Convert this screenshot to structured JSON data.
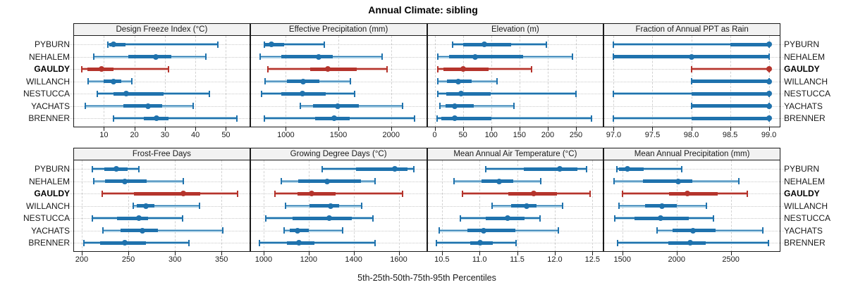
{
  "chart_data": {
    "type": "interval",
    "title": "Annual Climate: sibling",
    "xlabel": "5th-25th-50th-75th-95th Percentiles",
    "percentiles_shown": [
      5,
      25,
      50,
      75,
      95
    ],
    "legend_position": "none",
    "grid": "dashed vertical gridlines + dotted row guides",
    "sites": [
      "PYBURN",
      "NEHALEM",
      "GAULDY",
      "WILLANCH",
      "NESTUCCA",
      "YACHATS",
      "BRENNER"
    ],
    "highlight_site": "GAULDY",
    "colors": {
      "series_dark": "#1f72ad",
      "series_light": "#a9cfe4",
      "highlight_dark": "#b5342c",
      "highlight_light": "#e7b8b3",
      "header_bg": "#f2f2f2",
      "border": "#1a1a1a",
      "gridline": "#d2d2d2"
    },
    "panels": [
      {
        "label": "Design Freeze Index (°C)",
        "axis_min": 0.2,
        "axis_max": 57.7,
        "ticks": [
          10,
          20,
          30,
          40,
          50
        ],
        "tick_labels": [
          "10",
          "20",
          "30",
          "40",
          "50"
        ],
        "series": [
          [
            11.3,
            11.7,
            13.1,
            17.0,
            47.4
          ],
          [
            6.7,
            18.0,
            27.1,
            32.2,
            43.5
          ],
          [
            2.7,
            4.6,
            9.1,
            13.2,
            31.2
          ],
          [
            4.8,
            10.0,
            13.1,
            15.6,
            19.1
          ],
          [
            7.9,
            13.1,
            17.2,
            29.5,
            44.5
          ],
          [
            4.0,
            16.3,
            24.4,
            29.1,
            39.2
          ],
          [
            13.1,
            23.0,
            27.3,
            31.1,
            53.5
          ]
        ]
      },
      {
        "label": "Effective Precipitation (mm)",
        "axis_min": 668,
        "axis_max": 2333,
        "ticks": [
          1000,
          1500,
          2000
        ],
        "tick_labels": [
          "1000",
          "1500",
          "2000"
        ],
        "series": [
          [
            794,
            805,
            867,
            984,
            1369
          ],
          [
            756,
            955,
            1310,
            1449,
            1914
          ],
          [
            829,
            1232,
            1402,
            1671,
            1963
          ],
          [
            801,
            1011,
            1166,
            1321,
            1613
          ],
          [
            772,
            955,
            1161,
            1376,
            1653
          ],
          [
            1139,
            1259,
            1491,
            1693,
            2106
          ],
          [
            796,
            1276,
            1458,
            1608,
            2224
          ]
        ]
      },
      {
        "label": "Elevation (m)",
        "axis_min": -12.6,
        "axis_max": 297.7,
        "ticks": [
          0,
          50,
          100,
          150,
          200,
          250
        ],
        "tick_labels": [
          "0",
          "50",
          "100",
          "150",
          "200",
          "250"
        ],
        "series": [
          [
            32,
            51,
            88,
            135,
            197
          ],
          [
            5,
            26,
            72,
            156,
            244
          ],
          [
            5,
            15,
            50,
            95,
            172
          ],
          [
            6,
            22,
            42,
            65,
            110
          ],
          [
            5,
            20,
            47,
            99,
            250
          ],
          [
            9,
            19,
            35,
            69,
            140
          ],
          [
            4,
            12,
            36,
            100,
            278
          ]
        ]
      },
      {
        "label": "Fraction of Annual PPT as Rain",
        "axis_min": 96.88,
        "axis_max": 99.14,
        "ticks": [
          97.0,
          97.5,
          98.0,
          98.5,
          99.0
        ],
        "tick_labels": [
          "97.0",
          "97.5",
          "98.0",
          "98.5",
          "99.0"
        ],
        "series": [
          [
            97.0,
            98.5,
            99.0,
            99.0,
            99.0
          ],
          [
            97.0,
            97.0,
            98.0,
            99.0,
            99.0
          ],
          [
            98.0,
            99.0,
            99.0,
            99.0,
            99.0
          ],
          [
            98.0,
            98.0,
            99.0,
            99.0,
            99.0
          ],
          [
            97.0,
            98.0,
            99.0,
            99.0,
            99.0
          ],
          [
            98.0,
            98.0,
            99.0,
            99.0,
            99.0
          ],
          [
            97.0,
            98.0,
            99.0,
            99.0,
            99.0
          ]
        ]
      },
      {
        "label": "Frost-Free Days",
        "axis_min": 191.7,
        "axis_max": 379.9,
        "ticks": [
          200,
          250,
          300,
          350
        ],
        "tick_labels": [
          "200",
          "250",
          "300",
          "350"
        ],
        "series": [
          [
            211,
            224,
            237,
            249,
            261
          ],
          [
            213,
            225,
            246,
            270,
            309
          ],
          [
            222,
            256,
            309,
            327,
            367
          ],
          [
            255,
            259,
            269,
            278,
            326
          ],
          [
            211,
            238,
            261,
            271,
            308
          ],
          [
            223,
            242,
            265,
            282,
            351
          ],
          [
            202,
            220,
            246,
            269,
            315
          ]
        ]
      },
      {
        "label": "Growing Degree Days (°C)",
        "axis_min": 943,
        "axis_max": 1722,
        "ticks": [
          1000,
          1200,
          1400,
          1600
        ],
        "tick_labels": [
          "1000",
          "1200",
          "1400",
          "1600"
        ],
        "series": [
          [
            1259,
            1409,
            1582,
            1638,
            1666
          ],
          [
            1078,
            1155,
            1282,
            1433,
            1494
          ],
          [
            1050,
            1150,
            1212,
            1319,
            1616
          ],
          [
            1098,
            1205,
            1298,
            1336,
            1435
          ],
          [
            1010,
            1129,
            1290,
            1391,
            1487
          ],
          [
            1091,
            1116,
            1152,
            1202,
            1352
          ],
          [
            981,
            1103,
            1158,
            1226,
            1495
          ]
        ]
      },
      {
        "label": "Mean Annual Air Temperature (°C)",
        "axis_min": 10.31,
        "axis_max": 12.64,
        "ticks": [
          10.5,
          11.0,
          11.5,
          12.0,
          12.5
        ],
        "tick_labels": [
          "10.5",
          "11.0",
          "11.5",
          "12.0",
          "12.5"
        ],
        "series": [
          [
            11.08,
            11.59,
            12.07,
            12.3,
            12.42
          ],
          [
            10.66,
            11.03,
            11.26,
            11.45,
            11.81
          ],
          [
            10.77,
            11.38,
            11.72,
            12.03,
            12.47
          ],
          [
            11.17,
            11.42,
            11.63,
            11.76,
            12.1
          ],
          [
            10.75,
            11.08,
            11.37,
            11.6,
            11.8
          ],
          [
            10.46,
            10.84,
            11.05,
            11.48,
            12.05
          ],
          [
            10.43,
            10.88,
            11.01,
            11.18,
            11.49
          ]
        ]
      },
      {
        "label": "Mean Annual Precipitation (mm)",
        "axis_min": 1334,
        "axis_max": 2951,
        "ticks": [
          1500,
          2000,
          2500
        ],
        "tick_labels": [
          "1500",
          "2000",
          "2500"
        ],
        "series": [
          [
            1450,
            1470,
            1550,
            1694,
            2048
          ],
          [
            1425,
            1687,
            2014,
            2145,
            2575
          ],
          [
            1500,
            1930,
            2102,
            2382,
            2650
          ],
          [
            1466,
            1708,
            1863,
            1999,
            2278
          ],
          [
            1429,
            1612,
            1853,
            2111,
            2339
          ],
          [
            1822,
            1960,
            2149,
            2360,
            2795
          ],
          [
            1457,
            1924,
            2123,
            2268,
            2844
          ]
        ]
      }
    ]
  }
}
